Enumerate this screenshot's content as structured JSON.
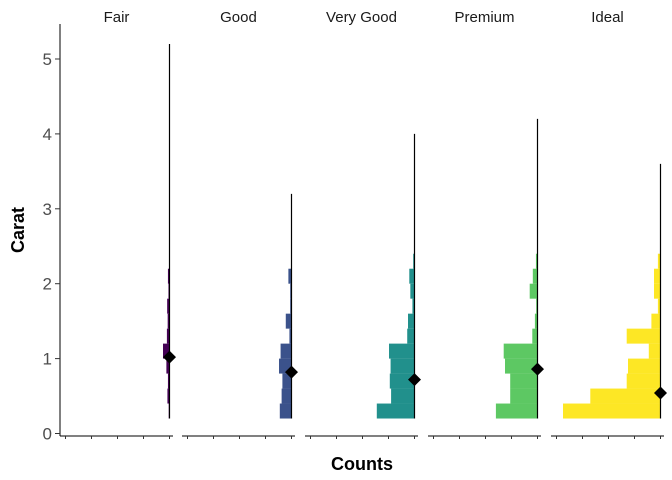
{
  "chart_data": {
    "type": "bar",
    "orientation": "horizontal",
    "xlabel": "Counts",
    "ylabel": "Carat",
    "ylim": [
      0,
      5.45
    ],
    "yticks": [
      0,
      1,
      2,
      3,
      4,
      5
    ],
    "grid": false,
    "legend": "none",
    "bin_width": 0.2,
    "bin_starts": [
      0.2,
      0.4,
      0.6,
      0.8,
      1.0,
      1.2,
      1.4,
      1.6,
      1.8,
      2.0,
      2.2
    ],
    "facets": [
      {
        "label": "Fair",
        "color": "#440154",
        "counts": [
          0.03,
          0.08,
          0.06,
          0.12,
          0.25,
          0.1,
          0.07,
          0.09,
          0.04,
          0.06,
          0
        ],
        "max": 5.2,
        "summary": 1.02
      },
      {
        "label": "Good",
        "color": "#3B528B",
        "counts": [
          0.45,
          0.38,
          0.35,
          0.48,
          0.42,
          0.08,
          0.22,
          0.05,
          0.05,
          0.12,
          0
        ],
        "max": 3.2,
        "summary": 0.82
      },
      {
        "label": "Very Good",
        "color": "#21908C",
        "counts": [
          1.45,
          0.9,
          0.95,
          0.92,
          0.98,
          0.28,
          0.25,
          0.08,
          0.16,
          0.2,
          0.05
        ],
        "max": 4.0,
        "summary": 0.72
      },
      {
        "label": "Premium",
        "color": "#5DC863",
        "counts": [
          1.6,
          1.05,
          1.05,
          1.25,
          1.3,
          0.2,
          0.1,
          0.05,
          0.3,
          0.18,
          0.06
        ],
        "max": 4.2,
        "summary": 0.86
      },
      {
        "label": "Ideal",
        "color": "#FDE725",
        "counts": [
          3.75,
          2.7,
          1.3,
          1.25,
          0.45,
          1.3,
          0.35,
          0.1,
          0.25,
          0.25,
          0.1
        ],
        "max": 3.6,
        "summary": 0.54
      }
    ]
  }
}
